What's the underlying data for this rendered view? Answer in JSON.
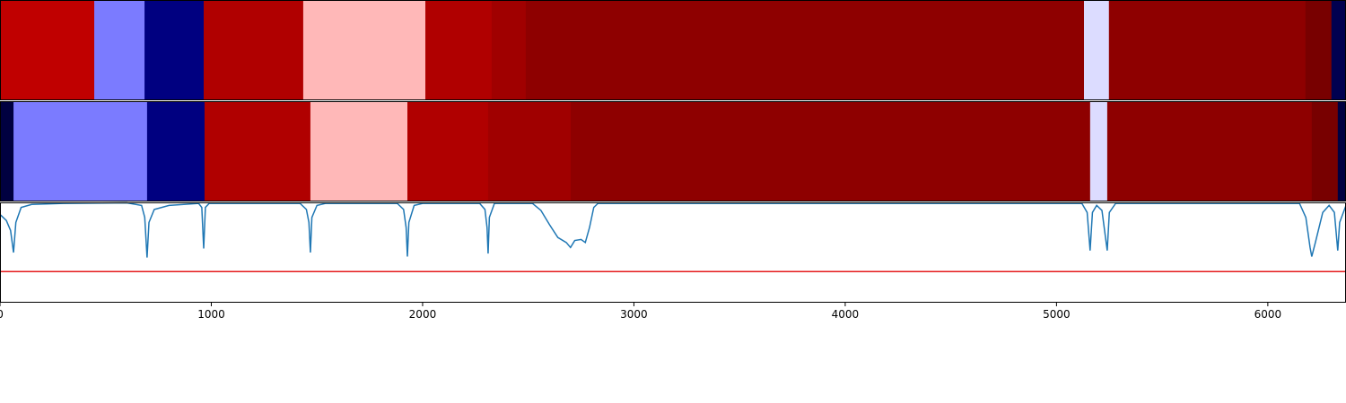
{
  "chart_data": [
    {
      "type": "segments",
      "xlim": [
        0,
        6370
      ],
      "starts": [
        0,
        446,
        684,
        964,
        1435,
        2013,
        2327,
        2488,
        5130,
        5248,
        6178,
        6301
      ],
      "ends": [
        446,
        684,
        964,
        1435,
        2013,
        2327,
        2488,
        5130,
        5248,
        6178,
        6301,
        6370
      ],
      "colors": [
        "#c00000",
        "#7b7bff",
        "#000080",
        "#b00000",
        "#ffb8b8",
        "#b00000",
        "#a00000",
        "#8e0000",
        "#dcdcff",
        "#8e0000",
        "#780000",
        "#000050"
      ]
    },
    {
      "type": "segments",
      "xlim": [
        0,
        6370
      ],
      "starts": [
        0,
        64,
        696,
        968,
        1469,
        1928,
        2310,
        2701,
        5159,
        5240,
        6208,
        6331
      ],
      "ends": [
        64,
        696,
        968,
        1469,
        1928,
        2310,
        2701,
        5159,
        5240,
        6208,
        6331,
        6370
      ],
      "colors": [
        "#000040",
        "#7b7bff",
        "#000080",
        "#b00000",
        "#ffb8b8",
        "#b00000",
        "#a00000",
        "#8e0000",
        "#dcdcff",
        "#8e0000",
        "#780000",
        "#000040"
      ]
    },
    {
      "type": "line",
      "xlim": [
        0,
        6370
      ],
      "ylim": [
        0,
        1
      ],
      "xticks": [
        0,
        1000,
        2000,
        3000,
        4000,
        5000,
        6000
      ],
      "threshold": 0.31,
      "threshold_color": "#e41a1c",
      "color": "#1f77b4",
      "x": [
        0,
        30,
        50,
        64,
        75,
        100,
        150,
        300,
        600,
        670,
        685,
        696,
        705,
        730,
        800,
        940,
        955,
        964,
        972,
        990,
        1420,
        1450,
        1462,
        1469,
        1476,
        1500,
        1540,
        1880,
        1910,
        1922,
        1928,
        1935,
        1960,
        2000,
        2270,
        2295,
        2305,
        2310,
        2316,
        2340,
        2520,
        2560,
        2600,
        2640,
        2680,
        2700,
        2720,
        2750,
        2770,
        2790,
        2810,
        2830,
        5120,
        5145,
        5159,
        5170,
        5190,
        5215,
        5240,
        5250,
        5280,
        6150,
        6180,
        6200,
        6208,
        6225,
        6260,
        6290,
        6315,
        6331,
        6340,
        6370
      ],
      "values": [
        0.88,
        0.82,
        0.72,
        0.5,
        0.8,
        0.95,
        0.98,
        0.99,
        0.995,
        0.97,
        0.85,
        0.45,
        0.8,
        0.93,
        0.97,
        0.99,
        0.95,
        0.54,
        0.95,
        0.99,
        0.99,
        0.93,
        0.8,
        0.5,
        0.85,
        0.97,
        0.99,
        0.99,
        0.93,
        0.75,
        0.46,
        0.8,
        0.97,
        0.99,
        0.99,
        0.93,
        0.75,
        0.49,
        0.85,
        0.99,
        0.99,
        0.92,
        0.78,
        0.65,
        0.6,
        0.55,
        0.62,
        0.63,
        0.6,
        0.75,
        0.95,
        0.99,
        0.99,
        0.9,
        0.52,
        0.9,
        0.97,
        0.92,
        0.52,
        0.9,
        0.99,
        0.99,
        0.85,
        0.55,
        0.46,
        0.6,
        0.9,
        0.97,
        0.9,
        0.52,
        0.8,
        0.97
      ]
    }
  ]
}
